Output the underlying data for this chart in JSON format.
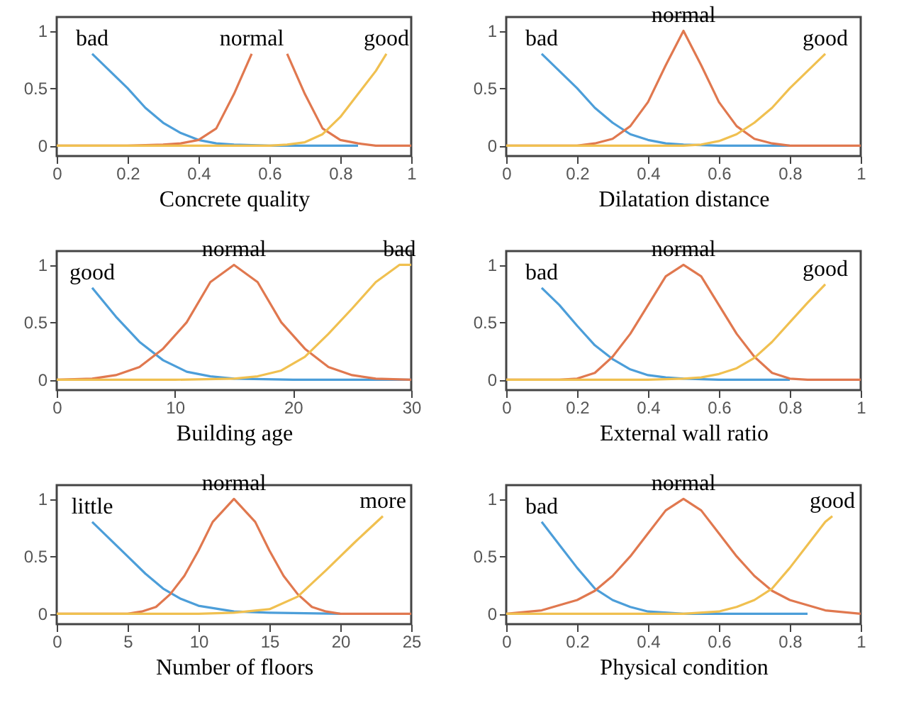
{
  "chart_data": [
    {
      "type": "line",
      "xlabel": "Concrete quality",
      "xlim": [
        0,
        1
      ],
      "xticks": [
        0,
        0.2,
        0.4,
        0.6,
        0.8,
        1
      ],
      "ylim": [
        -0.09,
        1.12
      ],
      "yticks": [
        0,
        0.5,
        1
      ],
      "series": [
        {
          "name": "bad",
          "color": "#4c9ed9",
          "x": [
            0.1,
            0.15,
            0.2,
            0.25,
            0.3,
            0.35,
            0.4,
            0.45,
            0.5,
            0.6,
            0.7,
            0.85
          ],
          "values": [
            0.8,
            0.65,
            0.5,
            0.33,
            0.2,
            0.11,
            0.05,
            0.02,
            0.01,
            0,
            0,
            0
          ]
        },
        {
          "name": "normal",
          "color": "#e0784f",
          "x": [
            0,
            0.2,
            0.3,
            0.35,
            0.4,
            0.45,
            0.5,
            0.55,
            0.6,
            0.65,
            0.7,
            0.75,
            0.8,
            0.85,
            0.9,
            1
          ],
          "values": [
            0,
            0,
            0.01,
            0.02,
            0.05,
            0.15,
            0.45,
            0.8,
            null,
            0.8,
            0.45,
            0.15,
            0.05,
            0.02,
            0,
            0
          ]
        },
        {
          "name": "good",
          "color": "#f0c050",
          "x": [
            0,
            0.3,
            0.6,
            0.65,
            0.7,
            0.75,
            0.8,
            0.85,
            0.9,
            0.93
          ],
          "values": [
            0,
            0,
            0,
            0.01,
            0.03,
            0.1,
            0.25,
            0.45,
            0.65,
            0.8
          ]
        }
      ]
    },
    {
      "type": "line",
      "xlabel": "Dilatation distance",
      "xlim": [
        0,
        1
      ],
      "xticks": [
        0,
        0.2,
        0.4,
        0.6,
        0.8,
        1
      ],
      "ylim": [
        -0.09,
        1.12
      ],
      "yticks": [
        0,
        0.5,
        1
      ],
      "series": [
        {
          "name": "bad",
          "color": "#4c9ed9",
          "x": [
            0.1,
            0.15,
            0.2,
            0.25,
            0.3,
            0.35,
            0.4,
            0.45,
            0.5,
            0.6,
            0.7,
            0.8
          ],
          "values": [
            0.8,
            0.65,
            0.5,
            0.33,
            0.2,
            0.1,
            0.05,
            0.02,
            0.01,
            0,
            0,
            0
          ]
        },
        {
          "name": "normal",
          "color": "#e0784f",
          "x": [
            0,
            0.2,
            0.25,
            0.3,
            0.35,
            0.4,
            0.45,
            0.5,
            0.55,
            0.6,
            0.65,
            0.7,
            0.75,
            0.8,
            1
          ],
          "values": [
            0,
            0,
            0.02,
            0.06,
            0.17,
            0.38,
            0.7,
            1,
            0.7,
            0.38,
            0.17,
            0.06,
            0.02,
            0,
            0
          ]
        },
        {
          "name": "good",
          "color": "#f0c050",
          "x": [
            0,
            0.5,
            0.55,
            0.6,
            0.65,
            0.7,
            0.75,
            0.8,
            0.85,
            0.9
          ],
          "values": [
            0,
            0,
            0.01,
            0.04,
            0.1,
            0.2,
            0.33,
            0.5,
            0.65,
            0.8
          ]
        }
      ]
    },
    {
      "type": "line",
      "xlabel": "Building age",
      "xlim": [
        0,
        30
      ],
      "xticks": [
        0,
        10,
        20,
        30
      ],
      "ylim": [
        -0.09,
        1.12
      ],
      "yticks": [
        0,
        0.5,
        1
      ],
      "series": [
        {
          "name": "good",
          "color": "#4c9ed9",
          "x": [
            3,
            5,
            7,
            9,
            11,
            13,
            15,
            20,
            25,
            30
          ],
          "values": [
            0.8,
            0.55,
            0.33,
            0.17,
            0.07,
            0.03,
            0.01,
            0,
            0,
            0
          ]
        },
        {
          "name": "normal",
          "color": "#e0784f",
          "x": [
            0,
            3,
            5,
            7,
            9,
            11,
            13,
            15,
            17,
            19,
            21,
            23,
            25,
            27,
            30
          ],
          "values": [
            0,
            0.01,
            0.04,
            0.11,
            0.27,
            0.5,
            0.85,
            1,
            0.85,
            0.5,
            0.27,
            0.11,
            0.04,
            0.01,
            0
          ]
        },
        {
          "name": "bad",
          "color": "#f0c050",
          "x": [
            0,
            10,
            15,
            17,
            19,
            21,
            23,
            25,
            27,
            29,
            30
          ],
          "values": [
            0,
            0,
            0.01,
            0.03,
            0.08,
            0.2,
            0.4,
            0.62,
            0.85,
            1,
            1
          ]
        }
      ]
    },
    {
      "type": "line",
      "xlabel": "External wall ratio",
      "xlim": [
        0,
        1
      ],
      "xticks": [
        0,
        0.2,
        0.4,
        0.6,
        0.8,
        1
      ],
      "ylim": [
        -0.09,
        1.12
      ],
      "yticks": [
        0,
        0.5,
        1
      ],
      "series": [
        {
          "name": "bad",
          "color": "#4c9ed9",
          "x": [
            0.1,
            0.15,
            0.2,
            0.25,
            0.3,
            0.35,
            0.4,
            0.45,
            0.5,
            0.6,
            0.7,
            0.8
          ],
          "values": [
            0.8,
            0.65,
            0.47,
            0.3,
            0.18,
            0.09,
            0.04,
            0.02,
            0.01,
            0,
            0,
            0
          ]
        },
        {
          "name": "normal",
          "color": "#e0784f",
          "x": [
            0,
            0.15,
            0.2,
            0.25,
            0.3,
            0.35,
            0.4,
            0.45,
            0.5,
            0.55,
            0.6,
            0.65,
            0.7,
            0.75,
            0.8,
            0.85,
            1
          ],
          "values": [
            0,
            0,
            0.01,
            0.06,
            0.2,
            0.4,
            0.65,
            0.9,
            1,
            0.9,
            0.65,
            0.4,
            0.2,
            0.06,
            0.01,
            0,
            0
          ]
        },
        {
          "name": "good",
          "color": "#f0c050",
          "x": [
            0,
            0.4,
            0.5,
            0.55,
            0.6,
            0.65,
            0.7,
            0.75,
            0.8,
            0.85,
            0.9
          ],
          "values": [
            0,
            0,
            0.01,
            0.02,
            0.05,
            0.1,
            0.19,
            0.33,
            0.5,
            0.67,
            0.83
          ]
        }
      ]
    },
    {
      "type": "line",
      "xlabel": "Number of floors",
      "xlim": [
        0,
        25
      ],
      "xticks": [
        0,
        5,
        10,
        15,
        20,
        25
      ],
      "ylim": [
        -0.09,
        1.12
      ],
      "yticks": [
        0,
        0.5,
        1
      ],
      "series": [
        {
          "name": "little",
          "color": "#4c9ed9",
          "x": [
            2.5,
            3.75,
            5,
            6.25,
            7.5,
            8.75,
            10,
            12.5,
            15,
            20
          ],
          "values": [
            0.8,
            0.65,
            0.5,
            0.35,
            0.22,
            0.13,
            0.07,
            0.02,
            0.01,
            0
          ]
        },
        {
          "name": "normal",
          "color": "#e0784f",
          "x": [
            0,
            5,
            6,
            7,
            8,
            9,
            10,
            11,
            12.5,
            14,
            15,
            16,
            17,
            18,
            19,
            20,
            25
          ],
          "values": [
            0,
            0,
            0.02,
            0.06,
            0.17,
            0.33,
            0.55,
            0.8,
            1,
            0.8,
            0.55,
            0.33,
            0.17,
            0.06,
            0.02,
            0,
            0
          ]
        },
        {
          "name": "more",
          "color": "#f0c050",
          "x": [
            0,
            10,
            12.5,
            15,
            17,
            19,
            21,
            23
          ],
          "values": [
            0,
            0,
            0.01,
            0.04,
            0.15,
            0.38,
            0.62,
            0.85
          ]
        }
      ]
    },
    {
      "type": "line",
      "xlabel": "Physical condition",
      "xlim": [
        0,
        1
      ],
      "xticks": [
        0,
        0.2,
        0.4,
        0.6,
        0.8,
        1
      ],
      "ylim": [
        -0.09,
        1.12
      ],
      "yticks": [
        0,
        0.5,
        1
      ],
      "series": [
        {
          "name": "bad",
          "color": "#4c9ed9",
          "x": [
            0.1,
            0.15,
            0.2,
            0.25,
            0.3,
            0.35,
            0.4,
            0.5,
            0.7,
            0.85
          ],
          "values": [
            0.8,
            0.6,
            0.4,
            0.22,
            0.12,
            0.06,
            0.02,
            0,
            0,
            0
          ]
        },
        {
          "name": "normal",
          "color": "#e0784f",
          "x": [
            0,
            0.1,
            0.2,
            0.25,
            0.3,
            0.35,
            0.4,
            0.45,
            0.5,
            0.55,
            0.6,
            0.65,
            0.7,
            0.75,
            0.8,
            0.9,
            1
          ],
          "values": [
            0,
            0.03,
            0.12,
            0.2,
            0.33,
            0.5,
            0.7,
            0.9,
            1,
            0.9,
            0.7,
            0.5,
            0.33,
            0.2,
            0.12,
            0.03,
            0
          ]
        },
        {
          "name": "good",
          "color": "#f0c050",
          "x": [
            0,
            0.5,
            0.6,
            0.65,
            0.7,
            0.75,
            0.8,
            0.85,
            0.9,
            0.92
          ],
          "values": [
            0,
            0,
            0.02,
            0.06,
            0.12,
            0.22,
            0.4,
            0.6,
            0.8,
            0.85
          ]
        }
      ]
    }
  ]
}
